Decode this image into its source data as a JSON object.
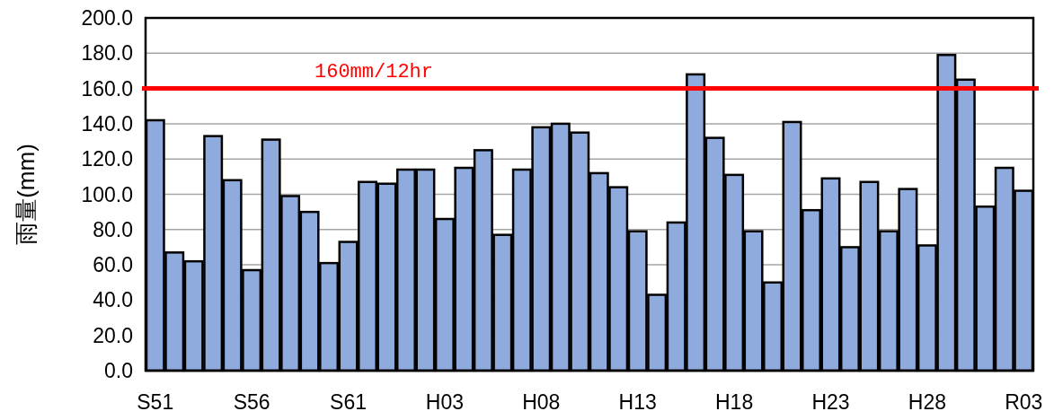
{
  "chart_data": {
    "type": "bar",
    "ylabel": "雨量(mm)",
    "categories": [
      "S51",
      null,
      null,
      null,
      null,
      "S56",
      null,
      null,
      null,
      null,
      "S61",
      null,
      null,
      null,
      null,
      "H03",
      null,
      null,
      null,
      null,
      "H08",
      null,
      null,
      null,
      null,
      "H13",
      null,
      null,
      null,
      null,
      "H18",
      null,
      null,
      null,
      null,
      "H23",
      null,
      null,
      null,
      null,
      "H28",
      null,
      null,
      null,
      null,
      "R03"
    ],
    "values": [
      142,
      67,
      62,
      133,
      108,
      57,
      131,
      99,
      90,
      61,
      73,
      107,
      106,
      114,
      114,
      86,
      115,
      125,
      77,
      114,
      138,
      140,
      135,
      112,
      104,
      79,
      43,
      84,
      168,
      132,
      111,
      79,
      50,
      141,
      91,
      109,
      70,
      107,
      79,
      103,
      71,
      179,
      165,
      93,
      115,
      102
    ],
    "color": "#8faadc",
    "ylim": [
      0,
      200
    ],
    "yticks": [
      {
        "value": 0,
        "label": "0.0"
      },
      {
        "value": 20,
        "label": "20.0"
      },
      {
        "value": 40,
        "label": "40.0"
      },
      {
        "value": 60,
        "label": "60.0"
      },
      {
        "value": 80,
        "label": "80.0"
      },
      {
        "value": 100,
        "label": "100.0"
      },
      {
        "value": 120,
        "label": "120.0"
      },
      {
        "value": 140,
        "label": "140.0"
      },
      {
        "value": 160,
        "label": "160.0"
      },
      {
        "value": 180,
        "label": "180.0"
      },
      {
        "value": 200,
        "label": "200.0"
      }
    ],
    "grid": "y",
    "ref_lines": [
      {
        "axis": "y",
        "value": 160,
        "label": "160mm/12hr",
        "color": "#ff0000"
      }
    ]
  }
}
